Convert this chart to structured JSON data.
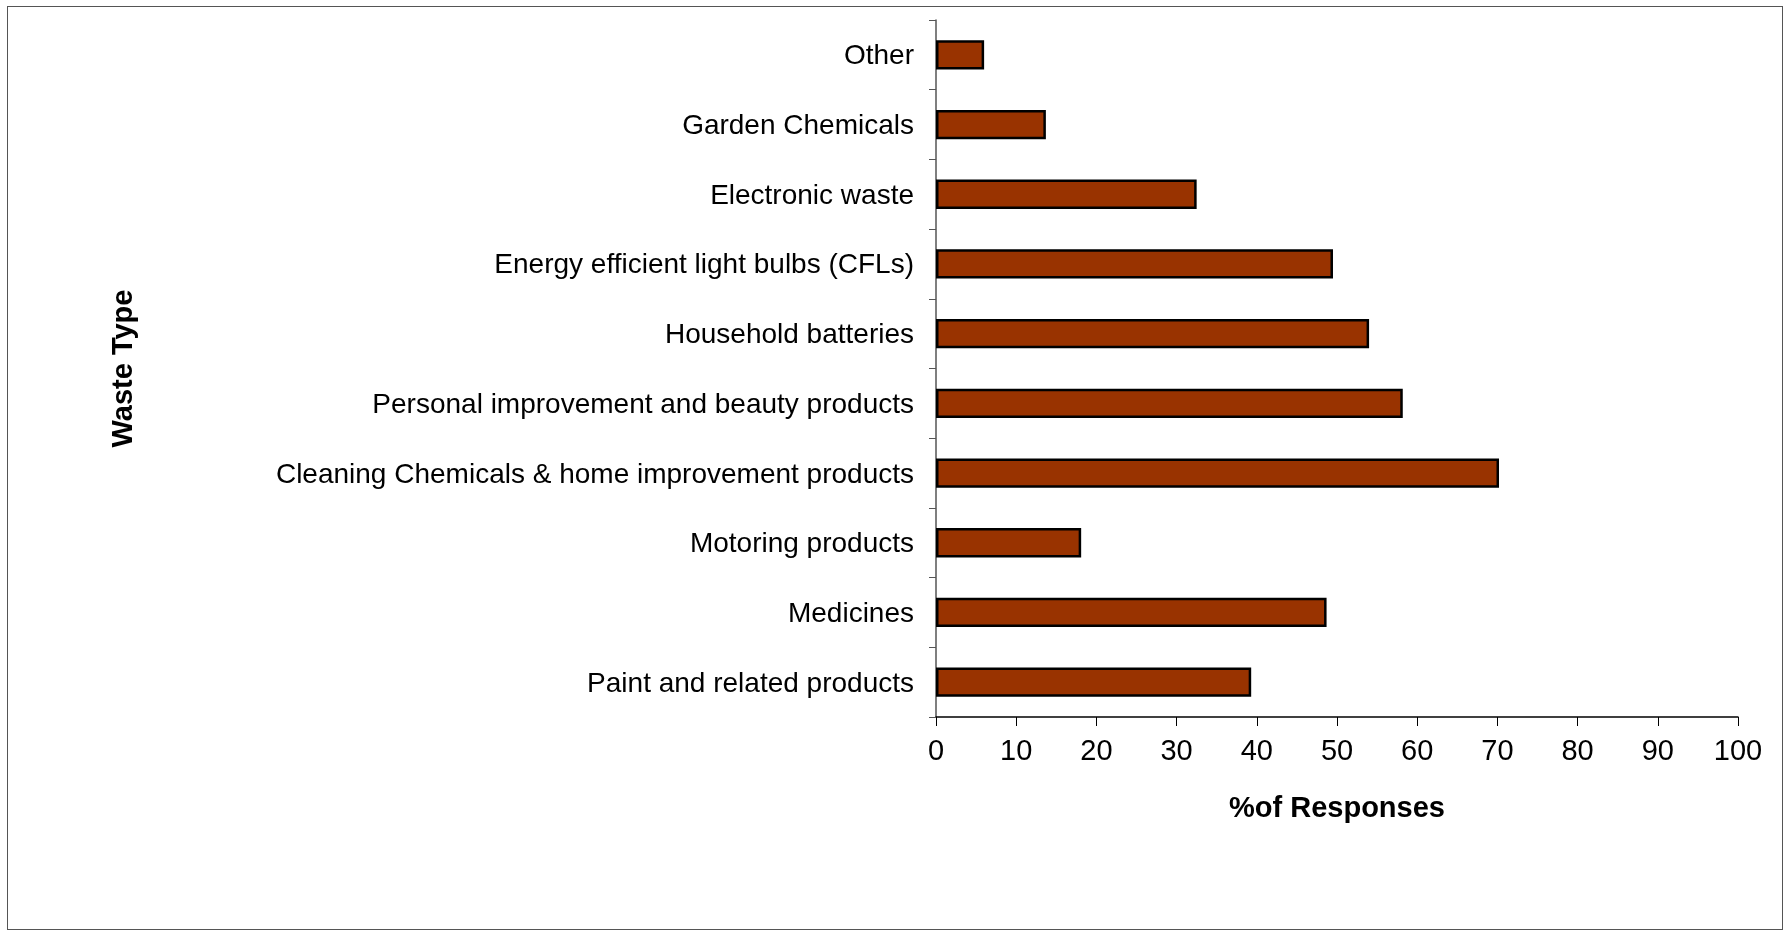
{
  "chart_data": {
    "type": "bar",
    "orientation": "horizontal",
    "categories": [
      "Other",
      "Garden Chemicals",
      "Electronic waste",
      "Energy efficient light bulbs (CFLs)",
      "Household batteries",
      "Personal improvement and beauty products",
      "Cleaning Chemicals & home improvement products",
      "Motoring products",
      "Medicines",
      "Paint and related products"
    ],
    "values": [
      6,
      13.7,
      32.5,
      49.5,
      54,
      58.2,
      70.2,
      18.1,
      48.7,
      39.3
    ],
    "color": "#993300",
    "xlabel": "%of Responses",
    "ylabel": "Waste Type",
    "xlim": [
      0,
      100
    ],
    "xticks": [
      0,
      10,
      20,
      30,
      40,
      50,
      60,
      70,
      80,
      90,
      100
    ],
    "grid": false
  }
}
